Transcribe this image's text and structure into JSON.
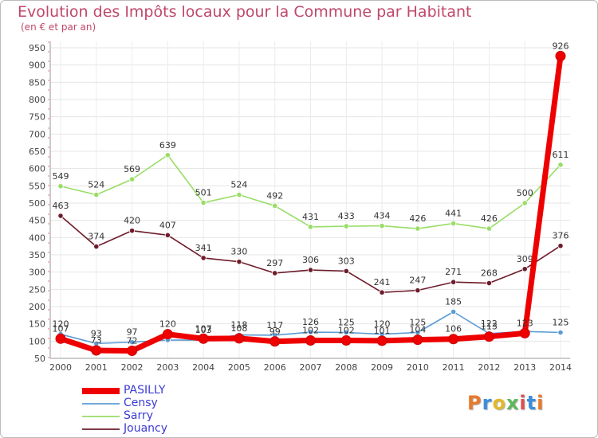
{
  "chart_data": {
    "type": "line",
    "title": "Evolution des Impôts locaux pour la Commune par Habitant",
    "subtitle": "(en € et par an)",
    "x": [
      "2000",
      "2001",
      "2002",
      "2003",
      "2004",
      "2005",
      "2006",
      "2007",
      "2008",
      "2009",
      "2010",
      "2011",
      "2012",
      "2013",
      "2014"
    ],
    "yticks": [
      50,
      100,
      150,
      200,
      250,
      300,
      350,
      400,
      450,
      500,
      550,
      600,
      650,
      700,
      750,
      800,
      850,
      900,
      950
    ],
    "ylim": [
      50,
      950
    ],
    "xlabel": "",
    "ylabel": "",
    "grid": true,
    "series": [
      {
        "name": "Sarry",
        "color": "#99dd66",
        "values": [
          549,
          524,
          569,
          639,
          501,
          524,
          492,
          431,
          433,
          434,
          426,
          441,
          426,
          500,
          611
        ],
        "labels": [
          "549",
          "524",
          "569",
          "639",
          "501",
          "524",
          "492",
          "431",
          "433",
          "434",
          "426",
          "441",
          "426",
          "500",
          "611"
        ]
      },
      {
        "name": "Jouancy",
        "color": "#6e1c2b",
        "values": [
          463,
          374,
          420,
          407,
          341,
          330,
          297,
          306,
          303,
          241,
          247,
          271,
          268,
          309,
          376
        ],
        "labels": [
          "463",
          "374",
          "420",
          "407",
          "341",
          "330",
          "297",
          "306",
          "303",
          "241",
          "247",
          "271",
          "268",
          "309",
          "376"
        ]
      },
      {
        "name": "Censy",
        "color": "#5b9bd5",
        "values": [
          120,
          93,
          97,
          103,
          103,
          118,
          117,
          126,
          125,
          120,
          125,
          185,
          122,
          128,
          125
        ],
        "labels": [
          "120",
          "93",
          "97",
          "",
          "103",
          "118",
          "117",
          "126",
          "125",
          "120",
          "125",
          "185",
          "122",
          "",
          "125"
        ]
      },
      {
        "name": "PASILLY",
        "color": "#ee0000",
        "values": [
          107,
          73,
          72,
          120,
          107,
          108,
          99,
          102,
          102,
          101,
          104,
          106,
          113,
          123,
          926
        ],
        "labels": [
          "107",
          "73",
          "72",
          "120",
          "107",
          "108",
          "99",
          "102",
          "102",
          "101",
          "104",
          "106",
          "113",
          "123",
          "926"
        ]
      }
    ],
    "legend": [
      "PASILLY",
      "Censy",
      "Sarry",
      "Jouancy"
    ],
    "legend_position": "bottom-left"
  },
  "logo_text": "Proxiti"
}
